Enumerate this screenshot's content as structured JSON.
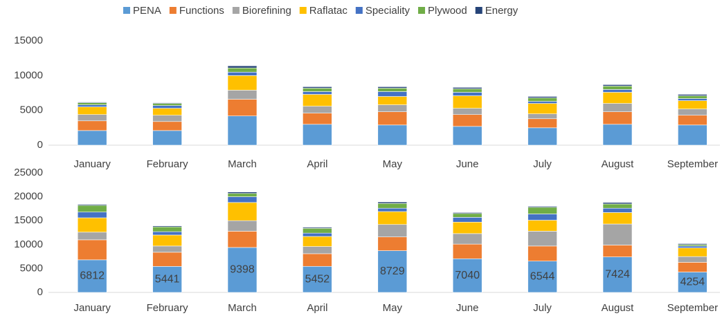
{
  "chart_data": [
    {
      "type": "stacked_bar",
      "legend": "top",
      "categories": [
        "January",
        "February",
        "March",
        "April",
        "May",
        "June",
        "July",
        "August",
        "September"
      ],
      "ylim": [
        0,
        15000
      ],
      "yticks": [
        0,
        5000,
        10000,
        15000
      ],
      "series": [
        {
          "name": "PENA",
          "color": "#5b9bd5",
          "values": [
            2100,
            2100,
            4200,
            3000,
            2900,
            2700,
            2500,
            3000,
            2900
          ]
        },
        {
          "name": "Functions",
          "color": "#ed7d31",
          "values": [
            1400,
            1300,
            2400,
            1600,
            1900,
            1700,
            1300,
            1800,
            1400
          ]
        },
        {
          "name": "Biorefining",
          "color": "#a5a5a5",
          "values": [
            900,
            900,
            1300,
            1000,
            1000,
            900,
            700,
            1200,
            900
          ]
        },
        {
          "name": "Raflatac",
          "color": "#ffc000",
          "values": [
            1100,
            1000,
            2100,
            1700,
            1200,
            1800,
            1500,
            1600,
            1200
          ]
        },
        {
          "name": "Speciality",
          "color": "#4472c4",
          "values": [
            300,
            400,
            500,
            400,
            700,
            500,
            300,
            400,
            300
          ]
        },
        {
          "name": "Plywood",
          "color": "#70ad47",
          "values": [
            300,
            300,
            600,
            500,
            500,
            500,
            500,
            500,
            400
          ]
        },
        {
          "name": "Energy",
          "color": "#264478",
          "values": [
            100,
            100,
            300,
            200,
            200,
            200,
            200,
            200,
            200
          ]
        }
      ]
    },
    {
      "type": "stacked_bar",
      "categories": [
        "January",
        "February",
        "March",
        "April",
        "May",
        "June",
        "July",
        "August",
        "September"
      ],
      "ylim": [
        0,
        25000
      ],
      "yticks": [
        0,
        5000,
        10000,
        15000,
        20000,
        25000
      ],
      "series": [
        {
          "color": "#5b9bd5",
          "show_values": true,
          "values": [
            6812,
            5441,
            9398,
            5452,
            8729,
            7040,
            6544,
            7424,
            4254
          ]
        },
        {
          "color": "#ed7d31",
          "values": [
            4188,
            2959,
            3402,
            2648,
            2871,
            3060,
            3156,
            2476,
            2046
          ]
        },
        {
          "color": "#a5a5a5",
          "values": [
            1600,
            1300,
            2200,
            1500,
            2600,
            2200,
            3100,
            4400,
            1200
          ]
        },
        {
          "color": "#ffc000",
          "values": [
            3000,
            2300,
            3800,
            2100,
            2700,
            2400,
            2300,
            2400,
            1800
          ]
        },
        {
          "color": "#4472c4",
          "values": [
            1200,
            700,
            1200,
            700,
            700,
            1000,
            1300,
            900,
            400
          ]
        },
        {
          "color": "#70ad47",
          "values": [
            1400,
            1000,
            700,
            1000,
            1000,
            800,
            1400,
            900,
            300
          ]
        },
        {
          "color": "#264478",
          "values": [
            200,
            200,
            300,
            200,
            300,
            200,
            200,
            300,
            200
          ]
        }
      ]
    }
  ]
}
